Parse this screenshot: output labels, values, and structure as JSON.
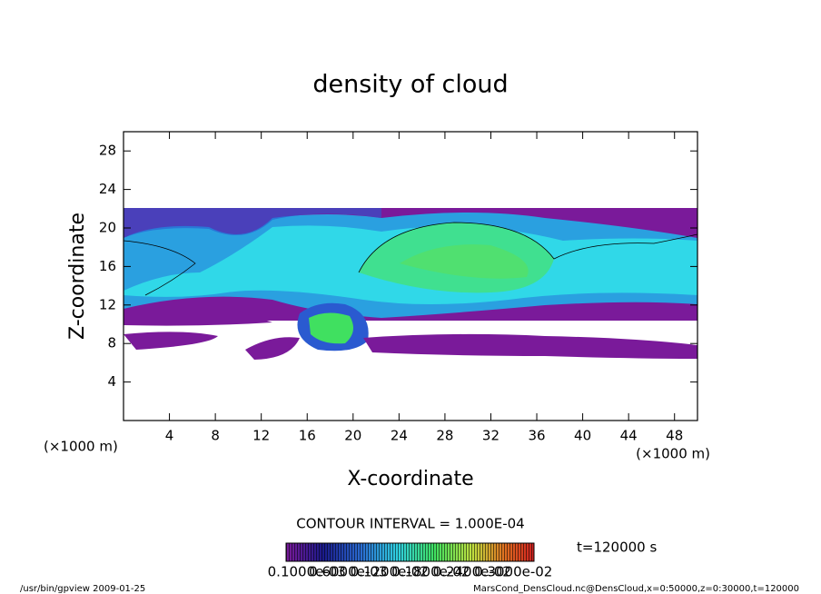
{
  "chart_data": {
    "type": "contour",
    "title": "density of cloud",
    "x_label": "X-coordinate",
    "y_label": "Z-coordinate",
    "x_unit": "(×1000 m)",
    "y_unit": "(×1000 m)",
    "xlim": [
      0,
      50
    ],
    "ylim": [
      0,
      30
    ],
    "xticks": [
      4,
      8,
      12,
      16,
      20,
      24,
      28,
      32,
      36,
      40,
      44,
      48
    ],
    "yticks": [
      4,
      8,
      12,
      16,
      20,
      24,
      28
    ],
    "contour_interval": "CONTOUR INTERVAL = 1.000E-04",
    "time_label": "t=120000 s",
    "colorbar_labels": [
      "0.1000e-03",
      "0.6000e-03",
      "0.1200e-02",
      "0.1800e-02",
      "0.2400e-02",
      "0.3000e-02"
    ],
    "footer_left": "/usr/bin/gpview  2009-01-25",
    "footer_right": "MarsCond_DensCloud.nc@DensCloud,x=0:50000,z=0:30000,t=120000"
  }
}
